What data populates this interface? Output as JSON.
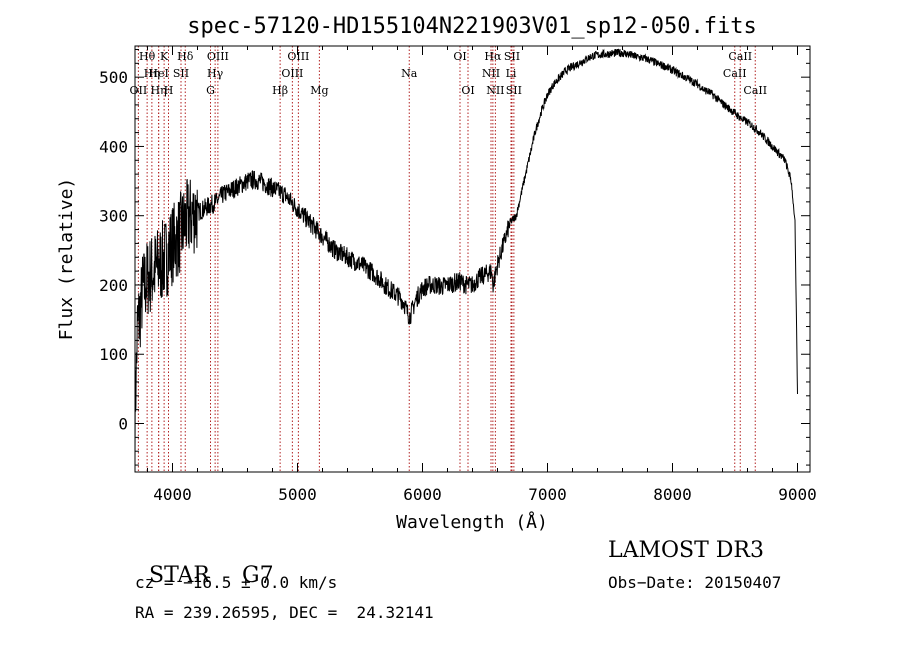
{
  "chart_data": {
    "type": "line",
    "title": "spec-57120-HD155104N221903V01_sp12-050.fits",
    "xlabel": "Wavelength (Å)",
    "ylabel": "Flux (relative)",
    "xlim": [
      3700,
      9100
    ],
    "ylim": [
      -70,
      545
    ],
    "x_ticks": [
      4000,
      5000,
      6000,
      7000,
      8000,
      9000
    ],
    "y_ticks": [
      0,
      100,
      200,
      300,
      400,
      500
    ],
    "grid": false,
    "series": [
      {
        "name": "flux",
        "x": [
          3700,
          3720,
          3740,
          3760,
          3780,
          3800,
          3850,
          3900,
          3950,
          4000,
          4050,
          4100,
          4150,
          4200,
          4250,
          4300,
          4350,
          4400,
          4450,
          4500,
          4550,
          4600,
          4650,
          4700,
          4750,
          4800,
          4850,
          4900,
          4950,
          5000,
          5050,
          5100,
          5150,
          5200,
          5250,
          5300,
          5350,
          5400,
          5450,
          5500,
          5550,
          5600,
          5650,
          5700,
          5750,
          5800,
          5850,
          5880,
          5900,
          5920,
          5950,
          6000,
          6050,
          6100,
          6150,
          6200,
          6250,
          6300,
          6350,
          6400,
          6450,
          6500,
          6550,
          6565,
          6600,
          6650,
          6700,
          6750,
          6800,
          6850,
          6900,
          6950,
          7000,
          7050,
          7100,
          7150,
          7200,
          7250,
          7300,
          7350,
          7400,
          7450,
          7500,
          7550,
          7600,
          7650,
          7700,
          7750,
          7800,
          7850,
          7900,
          7950,
          8000,
          8050,
          8100,
          8150,
          8200,
          8250,
          8300,
          8350,
          8400,
          8450,
          8500,
          8550,
          8600,
          8650,
          8700,
          8750,
          8800,
          8850,
          8900,
          8950,
          8980,
          9000
        ],
        "y": [
          10,
          140,
          160,
          190,
          200,
          210,
          220,
          230,
          240,
          260,
          270,
          290,
          300,
          305,
          310,
          315,
          320,
          330,
          335,
          340,
          345,
          350,
          352,
          350,
          345,
          340,
          335,
          330,
          320,
          310,
          300,
          290,
          280,
          270,
          260,
          250,
          245,
          240,
          235,
          230,
          225,
          218,
          210,
          200,
          192,
          185,
          175,
          160,
          155,
          165,
          180,
          195,
          200,
          200,
          198,
          200,
          203,
          205,
          200,
          200,
          210,
          215,
          220,
          200,
          230,
          260,
          290,
          300,
          340,
          380,
          420,
          450,
          475,
          490,
          500,
          510,
          515,
          520,
          525,
          530,
          532,
          533,
          534,
          535,
          535,
          533,
          530,
          528,
          526,
          522,
          518,
          515,
          510,
          505,
          500,
          495,
          490,
          482,
          478,
          470,
          462,
          455,
          448,
          440,
          435,
          428,
          420,
          410,
          400,
          390,
          380,
          350,
          290,
          40
        ]
      }
    ],
    "spectral_lines": [
      {
        "label": "OII",
        "x": 3727,
        "row": 3
      },
      {
        "label": "Hθ",
        "x": 3797,
        "row": 1
      },
      {
        "label": "Hη",
        "x": 3835,
        "row": 2
      },
      {
        "label": "Hη",
        "x": 3889,
        "row": 3
      },
      {
        "label": "HeI",
        "x": 3889,
        "row": 2
      },
      {
        "label": "K",
        "x": 3933,
        "row": 1
      },
      {
        "label": "H",
        "x": 3968,
        "row": 3
      },
      {
        "label": "SII",
        "x": 4068,
        "row": 2
      },
      {
        "label": "Hδ",
        "x": 4102,
        "row": 1
      },
      {
        "label": "G",
        "x": 4304,
        "row": 3
      },
      {
        "label": "OIII",
        "x": 4363,
        "row": 1
      },
      {
        "label": "Hγ",
        "x": 4341,
        "row": 2
      },
      {
        "label": "Hβ",
        "x": 4861,
        "row": 3
      },
      {
        "label": "OIII",
        "x": 4959,
        "row": 2
      },
      {
        "label": "OIII",
        "x": 5007,
        "row": 1
      },
      {
        "label": "Mg",
        "x": 5175,
        "row": 3
      },
      {
        "label": "Na",
        "x": 5894,
        "row": 2
      },
      {
        "label": "OI",
        "x": 6300,
        "row": 1
      },
      {
        "label": "OI",
        "x": 6364,
        "row": 3
      },
      {
        "label": "NII",
        "x": 6548,
        "row": 2
      },
      {
        "label": "Hα",
        "x": 6563,
        "row": 1
      },
      {
        "label": "NII",
        "x": 6583,
        "row": 3
      },
      {
        "label": "Li",
        "x": 6708,
        "row": 2
      },
      {
        "label": "SII",
        "x": 6716,
        "row": 1
      },
      {
        "label": "SII",
        "x": 6731,
        "row": 3
      },
      {
        "label": "CaII",
        "x": 8498,
        "row": 2
      },
      {
        "label": "CaII",
        "x": 8542,
        "row": 1
      },
      {
        "label": "CaII",
        "x": 8662,
        "row": 3
      }
    ]
  },
  "info": {
    "class_label": "STAR",
    "subclass": "G7",
    "cz_line": "cz = −16.5 ± 0.0 km/s",
    "radec_line": "RA = 239.26595, DEC =  24.32141",
    "survey": "LAMOST DR3",
    "obs_date_line": "Obs−Date: 20150407"
  }
}
